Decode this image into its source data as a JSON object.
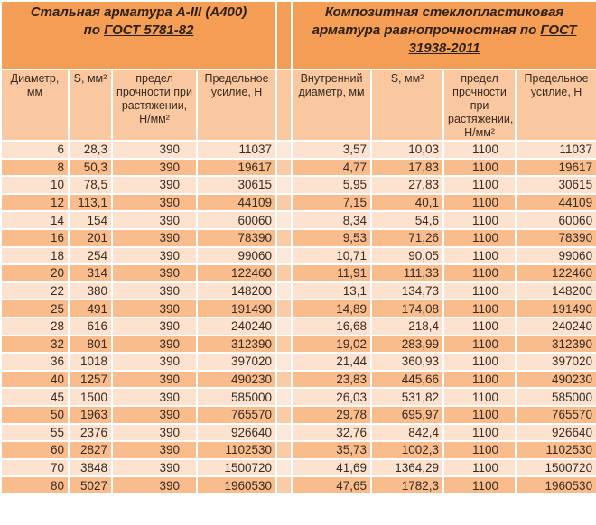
{
  "steel": {
    "title_line1": "Стальная арматура А-III (А400)",
    "title_line2_prefix": "по ",
    "title_link": "ГОСТ 5781-82"
  },
  "composite": {
    "title_line1": "Композитная стеклопластиковая",
    "title_line2": "арматура равнопрочностная по ",
    "title_link": "ГОСТ 31938-2011"
  },
  "columns": [
    "Диаметр, мм",
    "S, мм²",
    "предел прочности при растяжении, Н/мм²",
    "Предельное усилие, Н",
    "Внутренний диаметр, мм",
    "S, мм²",
    "предел прочности при растяжении, Н/мм²",
    "Предельное усилие, Н"
  ],
  "rows": [
    [
      "6",
      "28,3",
      "390",
      "11037",
      "3,57",
      "10,03",
      "1100",
      "11037"
    ],
    [
      "8",
      "50,3",
      "390",
      "19617",
      "4,77",
      "17,83",
      "1100",
      "19617"
    ],
    [
      "10",
      "78,5",
      "390",
      "30615",
      "5,95",
      "27,83",
      "1100",
      "30615"
    ],
    [
      "12",
      "113,1",
      "390",
      "44109",
      "7,15",
      "40,1",
      "1100",
      "44109"
    ],
    [
      "14",
      "154",
      "390",
      "60060",
      "8,34",
      "54,6",
      "1100",
      "60060"
    ],
    [
      "16",
      "201",
      "390",
      "78390",
      "9,53",
      "71,26",
      "1100",
      "78390"
    ],
    [
      "18",
      "254",
      "390",
      "99060",
      "10,71",
      "90,05",
      "1100",
      "99060"
    ],
    [
      "20",
      "314",
      "390",
      "122460",
      "11,91",
      "111,33",
      "1100",
      "122460"
    ],
    [
      "22",
      "380",
      "390",
      "148200",
      "13,1",
      "134,73",
      "1100",
      "148200"
    ],
    [
      "25",
      "491",
      "390",
      "191490",
      "14,89",
      "174,08",
      "1100",
      "191490"
    ],
    [
      "28",
      "616",
      "390",
      "240240",
      "16,68",
      "218,4",
      "1100",
      "240240"
    ],
    [
      "32",
      "801",
      "390",
      "312390",
      "19,02",
      "283,99",
      "1100",
      "312390"
    ],
    [
      "36",
      "1018",
      "390",
      "397020",
      "21,44",
      "360,93",
      "1100",
      "397020"
    ],
    [
      "40",
      "1257",
      "390",
      "490230",
      "23,83",
      "445,66",
      "1100",
      "490230"
    ],
    [
      "45",
      "1500",
      "390",
      "585000",
      "26,03",
      "531,82",
      "1100",
      "585000"
    ],
    [
      "50",
      "1963",
      "390",
      "765570",
      "29,78",
      "695,97",
      "1100",
      "765570"
    ],
    [
      "55",
      "2376",
      "390",
      "926640",
      "32,76",
      "842,4",
      "1100",
      "926640"
    ],
    [
      "60",
      "2827",
      "390",
      "1102530",
      "35,73",
      "1002,3",
      "1100",
      "1102530"
    ],
    [
      "70",
      "3848",
      "390",
      "1500720",
      "41,69",
      "1364,29",
      "1100",
      "1500720"
    ],
    [
      "80",
      "5027",
      "390",
      "1960530",
      "47,65",
      "1782,3",
      "1100",
      "1960530"
    ]
  ],
  "colors": {
    "header": "#f39d55",
    "subheader": "#f9c8a0",
    "row_light": "#fde3cf",
    "row_dark": "#f8bc8d"
  }
}
